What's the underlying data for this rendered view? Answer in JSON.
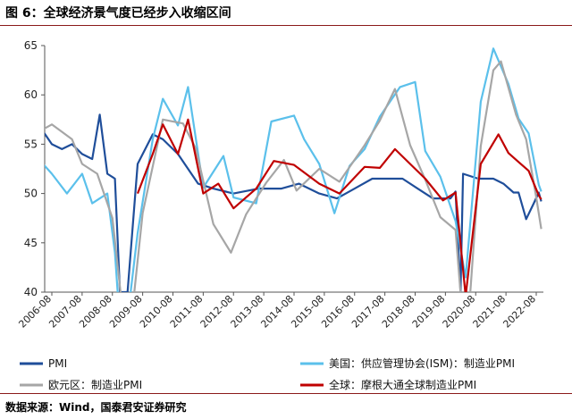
{
  "figure": {
    "title": "图 6：全球经济景气度已经步入收缩区间",
    "source": "数据来源：Wind，国泰君安证券研究"
  },
  "chart_data": {
    "type": "line",
    "title": "",
    "xlabel": "",
    "ylabel": "",
    "ylim": [
      40,
      65
    ],
    "y_ticks": [
      40,
      45,
      50,
      55,
      60,
      65
    ],
    "x_ticks": [
      "2006-08",
      "2007-08",
      "2008-08",
      "2009-08",
      "2010-08",
      "2011-08",
      "2012-08",
      "2013-08",
      "2014-08",
      "2015-08",
      "2016-08",
      "2017-08",
      "2018-08",
      "2019-08",
      "2020-08",
      "2021-08",
      "2022-08"
    ],
    "grid": false,
    "legend_position": "bottom",
    "series": [
      {
        "name": "PMI",
        "color": "#1F4E9A",
        "points": [
          [
            "2006-01",
            55.5
          ],
          [
            "2006-04",
            56.5
          ],
          [
            "2006-08",
            55.0
          ],
          [
            "2006-12",
            54.5
          ],
          [
            "2007-04",
            55.0
          ],
          [
            "2007-08",
            54.0
          ],
          [
            "2007-12",
            53.5
          ],
          [
            "2008-03",
            58.0
          ],
          [
            "2008-06",
            52.0
          ],
          [
            "2008-09",
            51.5
          ],
          [
            "2008-11",
            40.0
          ],
          [
            "2009-02",
            40.0
          ],
          [
            "2009-06",
            53.0
          ],
          [
            "2009-12",
            56.0
          ],
          [
            "2010-04",
            55.5
          ],
          [
            "2010-10",
            54.0
          ],
          [
            "2011-06",
            51.0
          ],
          [
            "2011-12",
            50.5
          ],
          [
            "2012-08",
            50.0
          ],
          [
            "2013-06",
            50.5
          ],
          [
            "2014-03",
            50.5
          ],
          [
            "2014-10",
            51.0
          ],
          [
            "2015-06",
            50.0
          ],
          [
            "2016-01",
            49.5
          ],
          [
            "2016-08",
            50.5
          ],
          [
            "2017-03",
            51.5
          ],
          [
            "2017-10",
            51.5
          ],
          [
            "2018-03",
            51.5
          ],
          [
            "2018-09",
            50.5
          ],
          [
            "2019-03",
            49.5
          ],
          [
            "2019-10",
            49.5
          ],
          [
            "2019-12",
            50.2
          ],
          [
            "2020-02",
            40.0
          ],
          [
            "2020-03",
            52.0
          ],
          [
            "2020-09",
            51.5
          ],
          [
            "2021-03",
            51.5
          ],
          [
            "2021-07",
            51.0
          ],
          [
            "2021-11",
            50.1
          ],
          [
            "2022-01",
            50.1
          ],
          [
            "2022-04",
            47.4
          ],
          [
            "2022-07",
            49.0
          ],
          [
            "2022-09",
            50.1
          ],
          [
            "2022-10",
            49.2
          ]
        ]
      },
      {
        "name": "美国：供应管理协会(ISM)：制造业PMI",
        "color": "#5BC0EB",
        "points": [
          [
            "2006-01",
            54.0
          ],
          [
            "2006-08",
            52.0
          ],
          [
            "2007-02",
            50.0
          ],
          [
            "2007-08",
            52.0
          ],
          [
            "2007-12",
            49.0
          ],
          [
            "2008-06",
            50.0
          ],
          [
            "2008-09",
            44.0
          ],
          [
            "2008-12",
            33.0
          ],
          [
            "2009-06",
            46.0
          ],
          [
            "2009-12",
            55.5
          ],
          [
            "2010-04",
            59.6
          ],
          [
            "2010-10",
            56.9
          ],
          [
            "2011-02",
            60.8
          ],
          [
            "2011-08",
            50.6
          ],
          [
            "2012-04",
            53.8
          ],
          [
            "2012-08",
            49.6
          ],
          [
            "2013-05",
            49.0
          ],
          [
            "2013-11",
            57.3
          ],
          [
            "2014-08",
            57.9
          ],
          [
            "2014-12",
            55.5
          ],
          [
            "2015-06",
            53.0
          ],
          [
            "2015-12",
            48.0
          ],
          [
            "2016-06",
            52.8
          ],
          [
            "2016-12",
            54.5
          ],
          [
            "2017-06",
            57.8
          ],
          [
            "2018-02",
            60.8
          ],
          [
            "2018-08",
            61.3
          ],
          [
            "2018-12",
            54.3
          ],
          [
            "2019-06",
            51.7
          ],
          [
            "2019-12",
            47.2
          ],
          [
            "2020-04",
            41.5
          ],
          [
            "2020-10",
            59.3
          ],
          [
            "2021-03",
            64.7
          ],
          [
            "2021-09",
            61.1
          ],
          [
            "2022-01",
            57.6
          ],
          [
            "2022-05",
            56.1
          ],
          [
            "2022-09",
            50.9
          ],
          [
            "2022-10",
            50.2
          ]
        ]
      },
      {
        "name": "欧元区：制造业PMI",
        "color": "#A6A6A6",
        "points": [
          [
            "2006-01",
            56.0
          ],
          [
            "2006-08",
            57.0
          ],
          [
            "2007-04",
            55.5
          ],
          [
            "2007-08",
            53.0
          ],
          [
            "2008-02",
            52.0
          ],
          [
            "2008-08",
            47.5
          ],
          [
            "2009-02",
            33.5
          ],
          [
            "2009-08",
            48.0
          ],
          [
            "2010-04",
            57.5
          ],
          [
            "2010-12",
            57.1
          ],
          [
            "2011-05",
            54.6
          ],
          [
            "2011-12",
            46.9
          ],
          [
            "2012-07",
            44.0
          ],
          [
            "2013-01",
            47.9
          ],
          [
            "2013-09",
            51.1
          ],
          [
            "2014-04",
            53.4
          ],
          [
            "2014-09",
            50.3
          ],
          [
            "2015-06",
            52.5
          ],
          [
            "2016-02",
            51.2
          ],
          [
            "2016-12",
            54.9
          ],
          [
            "2017-06",
            57.4
          ],
          [
            "2017-12",
            60.6
          ],
          [
            "2018-06",
            54.9
          ],
          [
            "2018-12",
            51.4
          ],
          [
            "2019-06",
            47.6
          ],
          [
            "2019-12",
            46.3
          ],
          [
            "2020-04",
            33.4
          ],
          [
            "2020-10",
            54.8
          ],
          [
            "2021-03",
            62.5
          ],
          [
            "2021-06",
            63.4
          ],
          [
            "2021-12",
            58.0
          ],
          [
            "2022-04",
            55.5
          ],
          [
            "2022-08",
            49.6
          ],
          [
            "2022-10",
            46.4
          ]
        ]
      },
      {
        "name": "全球：摩根大通全球制造业PMI",
        "color": "#C00000",
        "points": [
          [
            "2009-06",
            50.0
          ],
          [
            "2009-12",
            54.0
          ],
          [
            "2010-04",
            57.0
          ],
          [
            "2010-10",
            54.0
          ],
          [
            "2011-02",
            57.5
          ],
          [
            "2011-08",
            50.0
          ],
          [
            "2012-02",
            51.0
          ],
          [
            "2012-08",
            48.5
          ],
          [
            "2013-05",
            50.5
          ],
          [
            "2013-12",
            53.3
          ],
          [
            "2014-08",
            52.9
          ],
          [
            "2015-06",
            51.0
          ],
          [
            "2016-02",
            50.0
          ],
          [
            "2016-12",
            52.7
          ],
          [
            "2017-06",
            52.6
          ],
          [
            "2017-12",
            54.5
          ],
          [
            "2018-06",
            53.0
          ],
          [
            "2018-12",
            51.5
          ],
          [
            "2019-07",
            49.3
          ],
          [
            "2019-12",
            50.1
          ],
          [
            "2020-04",
            39.6
          ],
          [
            "2020-10",
            53.0
          ],
          [
            "2021-05",
            56.0
          ],
          [
            "2021-09",
            54.1
          ],
          [
            "2022-01",
            53.2
          ],
          [
            "2022-05",
            52.3
          ],
          [
            "2022-09",
            49.8
          ],
          [
            "2022-10",
            49.4
          ]
        ]
      }
    ]
  }
}
